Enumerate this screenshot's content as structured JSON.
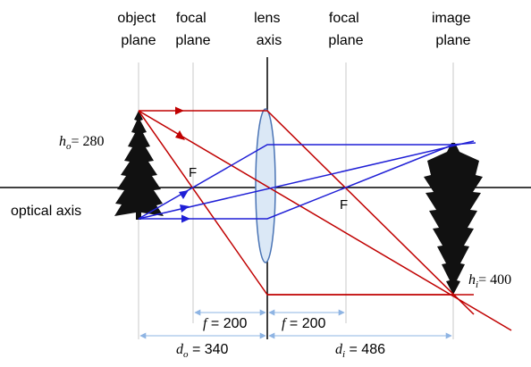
{
  "headers": {
    "object_plane": [
      "object",
      "plane"
    ],
    "focal_plane_left": [
      "focal",
      "plane"
    ],
    "lens_axis": [
      "lens",
      "axis"
    ],
    "focal_plane_right": [
      "focal",
      "plane"
    ],
    "image_plane": [
      "image",
      "plane"
    ]
  },
  "labels": {
    "object_height": {
      "sym": "h",
      "sub": "o",
      "value": "= 280"
    },
    "image_height": {
      "sym": "h",
      "sub": "i",
      "value": "= 400"
    },
    "optical_axis": "optical axis",
    "focal_point_left": "F",
    "focal_point_right": "F",
    "focal_length_left": {
      "sym": "f",
      "value": " = 200"
    },
    "focal_length_right": {
      "sym": "f",
      "value": " = 200"
    },
    "object_distance": {
      "sym": "d",
      "sub": "o",
      "value": " = 340"
    },
    "image_distance": {
      "sym": "d",
      "sub": "i",
      "value": " = 486"
    }
  },
  "colors": {
    "red_rays": "#c00000",
    "blue_rays": "#1f1fd6",
    "dimension": "#8eb4e3",
    "lens_fill": "#dbe8f6",
    "lens_stroke": "#4a74b5",
    "plane_lines": "#c8c8c8",
    "axis": "#000000",
    "tree": "#111111"
  }
}
